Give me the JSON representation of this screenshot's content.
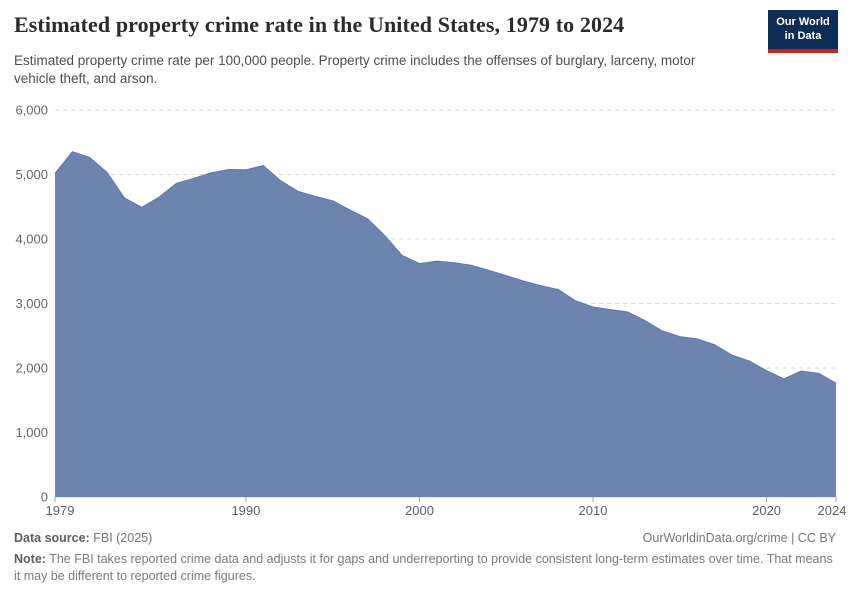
{
  "header": {
    "title": "Estimated property crime rate in the United States, 1979 to 2024",
    "subtitle": "Estimated property crime rate per 100,000 people. Property crime includes the offenses of burglary, larceny, motor vehicle theft, and arson.",
    "logo": {
      "line1": "Our World",
      "line2": "in Data",
      "bg_color": "#0d2d54",
      "stripe_color": "#c0262c"
    }
  },
  "chart_data": {
    "type": "area",
    "title": "Estimated property crime rate in the United States, 1979 to 2024",
    "xlabel": "",
    "ylabel": "Estimated property crime rate per 100,000 people",
    "xlim": [
      1979,
      2024
    ],
    "ylim": [
      0,
      6000
    ],
    "grid": "dashed horizontal",
    "legend_position": "none",
    "area_color": "#6c84ae",
    "line_color": "#5d77a8",
    "grid_color": "#d9d9d9",
    "axis_label_color": "#666666",
    "yticks": [
      0,
      1000,
      2000,
      3000,
      4000,
      5000,
      6000
    ],
    "ytick_labels": [
      "0",
      "1,000",
      "2,000",
      "3,000",
      "4,000",
      "5,000",
      "6,000"
    ],
    "xticks": [
      1979,
      1990,
      2000,
      2010,
      2020,
      2024
    ],
    "xtick_labels": [
      "1979",
      "1990",
      "2000",
      "2010",
      "2020",
      "2024"
    ],
    "x": [
      1979,
      1980,
      1981,
      1982,
      1983,
      1984,
      1985,
      1986,
      1987,
      1988,
      1989,
      1990,
      1991,
      1992,
      1993,
      1994,
      1995,
      1996,
      1997,
      1998,
      1999,
      2000,
      2001,
      2002,
      2003,
      2004,
      2005,
      2006,
      2007,
      2008,
      2009,
      2010,
      2011,
      2012,
      2013,
      2014,
      2015,
      2016,
      2017,
      2018,
      2019,
      2020,
      2021,
      2022,
      2023,
      2024
    ],
    "series": [
      {
        "name": "United States property crime rate",
        "values": [
          5017,
          5353,
          5264,
          5033,
          4637,
          4492,
          4651,
          4863,
          4940,
          5027,
          5078,
          5073,
          5140,
          4904,
          4740,
          4660,
          4591,
          4451,
          4316,
          4053,
          3744,
          3618,
          3658,
          3631,
          3591,
          3514,
          3432,
          3347,
          3276,
          3215,
          3041,
          2946,
          2905,
          2868,
          2734,
          2574,
          2487,
          2451,
          2362,
          2200,
          2110,
          1958,
          1832,
          1954,
          1917,
          1765
        ]
      }
    ]
  },
  "footer": {
    "datasource_label": "Data source:",
    "datasource_value": "FBI (2025)",
    "link_text": "OurWorldinData.org/crime | CC BY",
    "note_label": "Note:",
    "note_text": "The FBI takes reported crime data and adjusts it for gaps and underreporting to provide consistent long-term estimates over time. That means it may be different to reported crime figures."
  }
}
